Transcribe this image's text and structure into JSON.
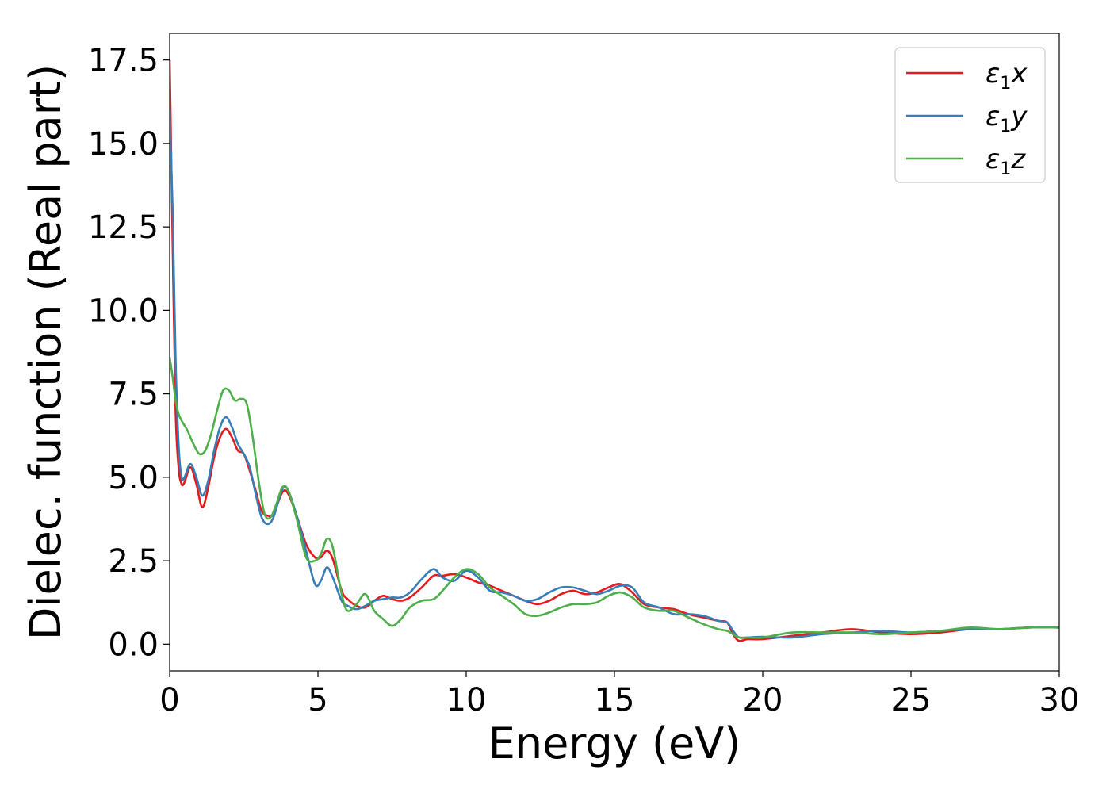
{
  "chart_data": {
    "type": "line",
    "xlabel": "Energy (eV)",
    "ylabel": "Dielec. function (Real part)",
    "xlim": [
      0,
      30
    ],
    "ylim": [
      -0.8,
      18.3
    ],
    "xticks": [
      0,
      5,
      10,
      15,
      20,
      25,
      30
    ],
    "xtick_labels": [
      "0",
      "5",
      "10",
      "15",
      "20",
      "25",
      "30"
    ],
    "yticks": [
      0.0,
      2.5,
      5.0,
      7.5,
      10.0,
      12.5,
      15.0,
      17.5
    ],
    "ytick_labels": [
      "0.0",
      "2.5",
      "5.0",
      "7.5",
      "10.0",
      "12.5",
      "15.0",
      "17.5"
    ],
    "grid": false,
    "legend_position": "top-right",
    "series": [
      {
        "name": "ε1x",
        "symbol": "ε",
        "sub": "1",
        "suffix": "x",
        "color": "#e41a1c",
        "x": [
          0,
          0.1,
          0.2,
          0.3,
          0.4,
          0.5,
          0.7,
          0.9,
          1.1,
          1.3,
          1.5,
          1.7,
          1.9,
          2.1,
          2.3,
          2.5,
          2.7,
          2.9,
          3.1,
          3.3,
          3.5,
          3.8,
          4.0,
          4.3,
          4.6,
          4.9,
          5.1,
          5.3,
          5.5,
          5.8,
          6.0,
          6.3,
          6.6,
          6.9,
          7.2,
          7.5,
          7.8,
          8.1,
          8.5,
          8.9,
          9.2,
          9.6,
          10.0,
          10.4,
          10.8,
          11.2,
          11.6,
          12.0,
          12.4,
          12.8,
          13.2,
          13.6,
          14.0,
          14.4,
          14.8,
          15.2,
          15.6,
          16.0,
          16.5,
          17.0,
          17.5,
          18.0,
          18.5,
          18.8,
          19.0,
          19.2,
          19.5,
          20.0,
          21.0,
          22.0,
          23.0,
          24.0,
          25.0,
          26.0,
          27.0,
          28.0,
          29.0,
          30.0
        ],
        "y": [
          17.5,
          12.0,
          7.0,
          5.3,
          4.8,
          4.85,
          5.3,
          4.8,
          4.1,
          4.7,
          5.6,
          6.2,
          6.45,
          6.2,
          5.8,
          5.7,
          5.2,
          4.6,
          4.0,
          3.85,
          3.9,
          4.55,
          4.5,
          3.8,
          3.0,
          2.6,
          2.6,
          2.8,
          2.55,
          1.6,
          1.35,
          1.15,
          1.1,
          1.3,
          1.45,
          1.35,
          1.3,
          1.4,
          1.7,
          2.05,
          2.05,
          2.1,
          2.0,
          1.85,
          1.75,
          1.6,
          1.45,
          1.3,
          1.2,
          1.3,
          1.5,
          1.6,
          1.5,
          1.55,
          1.7,
          1.8,
          1.55,
          1.2,
          1.1,
          1.05,
          0.9,
          0.8,
          0.7,
          0.65,
          0.3,
          0.1,
          0.15,
          0.15,
          0.25,
          0.35,
          0.45,
          0.35,
          0.3,
          0.35,
          0.45,
          0.45,
          0.5,
          0.5
        ]
      },
      {
        "name": "ε1y",
        "symbol": "ε",
        "sub": "1",
        "suffix": "y",
        "color": "#377eb8",
        "x": [
          0,
          0.1,
          0.2,
          0.3,
          0.4,
          0.5,
          0.7,
          0.9,
          1.1,
          1.3,
          1.5,
          1.7,
          1.9,
          2.1,
          2.3,
          2.5,
          2.7,
          2.9,
          3.1,
          3.3,
          3.5,
          3.8,
          4.0,
          4.3,
          4.6,
          4.9,
          5.1,
          5.3,
          5.5,
          5.8,
          6.0,
          6.3,
          6.6,
          6.9,
          7.2,
          7.5,
          7.8,
          8.1,
          8.5,
          8.9,
          9.2,
          9.6,
          10.0,
          10.4,
          10.8,
          11.2,
          11.6,
          12.0,
          12.4,
          12.8,
          13.2,
          13.6,
          14.0,
          14.4,
          14.8,
          15.2,
          15.6,
          16.0,
          16.5,
          17.0,
          17.5,
          18.0,
          18.5,
          18.8,
          19.0,
          19.2,
          19.5,
          20.0,
          21.0,
          22.0,
          23.0,
          24.0,
          25.0,
          26.0,
          27.0,
          28.0,
          29.0,
          30.0
        ],
        "y": [
          16.0,
          13.0,
          8.5,
          6.0,
          5.0,
          5.0,
          5.4,
          5.0,
          4.45,
          4.9,
          5.8,
          6.5,
          6.8,
          6.5,
          6.0,
          5.7,
          5.3,
          4.5,
          3.8,
          3.6,
          3.8,
          4.65,
          4.6,
          3.8,
          2.8,
          1.8,
          1.9,
          2.3,
          2.0,
          1.3,
          1.15,
          1.05,
          1.15,
          1.3,
          1.35,
          1.4,
          1.4,
          1.55,
          1.95,
          2.25,
          2.0,
          1.9,
          2.2,
          2.0,
          1.6,
          1.55,
          1.45,
          1.3,
          1.35,
          1.55,
          1.7,
          1.7,
          1.6,
          1.5,
          1.6,
          1.75,
          1.7,
          1.25,
          1.1,
          0.9,
          0.9,
          0.85,
          0.7,
          0.65,
          0.4,
          0.2,
          0.2,
          0.22,
          0.2,
          0.3,
          0.35,
          0.4,
          0.35,
          0.4,
          0.45,
          0.45,
          0.5,
          0.5
        ]
      },
      {
        "name": "ε1z",
        "symbol": "ε",
        "sub": "1",
        "suffix": "z",
        "color": "#4daf4a",
        "x": [
          0,
          0.1,
          0.2,
          0.3,
          0.4,
          0.6,
          0.8,
          1.0,
          1.2,
          1.4,
          1.6,
          1.8,
          2.0,
          2.2,
          2.4,
          2.6,
          2.8,
          3.0,
          3.2,
          3.4,
          3.6,
          3.8,
          4.0,
          4.3,
          4.6,
          4.9,
          5.1,
          5.3,
          5.5,
          5.8,
          6.0,
          6.3,
          6.6,
          6.9,
          7.2,
          7.5,
          7.8,
          8.1,
          8.5,
          8.9,
          9.2,
          9.6,
          10.0,
          10.4,
          10.8,
          11.2,
          11.6,
          12.0,
          12.4,
          12.8,
          13.2,
          13.6,
          14.0,
          14.4,
          14.8,
          15.2,
          15.6,
          16.0,
          16.5,
          17.0,
          17.5,
          18.0,
          18.5,
          18.8,
          19.0,
          19.2,
          19.5,
          20.0,
          21.0,
          22.0,
          23.0,
          24.0,
          25.0,
          26.0,
          27.0,
          28.0,
          29.0,
          30.0
        ],
        "y": [
          8.6,
          8.0,
          7.3,
          6.9,
          6.7,
          6.4,
          6.0,
          5.7,
          5.8,
          6.3,
          7.0,
          7.6,
          7.6,
          7.3,
          7.35,
          7.2,
          6.2,
          4.9,
          3.9,
          3.8,
          4.2,
          4.7,
          4.6,
          3.7,
          2.6,
          2.5,
          2.7,
          3.15,
          2.9,
          1.5,
          1.0,
          1.2,
          1.5,
          1.0,
          0.75,
          0.55,
          0.75,
          1.1,
          1.3,
          1.35,
          1.6,
          2.0,
          2.25,
          2.1,
          1.7,
          1.45,
          1.2,
          0.9,
          0.85,
          0.95,
          1.1,
          1.2,
          1.2,
          1.25,
          1.45,
          1.55,
          1.4,
          1.1,
          1.0,
          1.0,
          0.8,
          0.6,
          0.45,
          0.4,
          0.3,
          0.2,
          0.2,
          0.2,
          0.35,
          0.35,
          0.35,
          0.3,
          0.35,
          0.4,
          0.5,
          0.45,
          0.5,
          0.5
        ]
      }
    ]
  }
}
